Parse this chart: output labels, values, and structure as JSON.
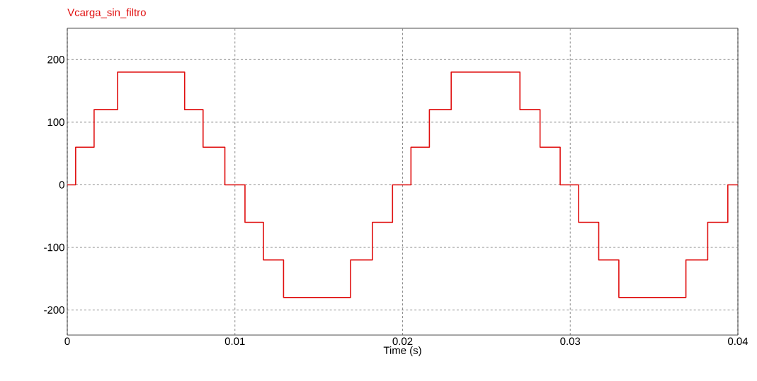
{
  "chart_data": {
    "type": "step",
    "xlabel": "Time (s)",
    "x": [
      0,
      0.0005,
      0.0016,
      0.003,
      0.007,
      0.0081,
      0.0094,
      0.0106,
      0.0117,
      0.0129,
      0.0169,
      0.0182,
      0.0194,
      0.0205,
      0.0216,
      0.0229,
      0.027,
      0.0282,
      0.0294,
      0.0305,
      0.0317,
      0.0329,
      0.0369,
      0.0382,
      0.0394,
      0.04
    ],
    "series": [
      {
        "name": "Vcarga_sin_filtro",
        "color": "#e01010",
        "values": [
          0,
          60,
          120,
          180,
          120,
          60,
          0,
          -60,
          -120,
          -180,
          -120,
          -60,
          0,
          60,
          120,
          180,
          120,
          60,
          0,
          -60,
          -120,
          -180,
          -120,
          -60,
          0,
          0
        ]
      }
    ],
    "xlim": [
      0,
      0.04
    ],
    "xticks": [
      0,
      0.01,
      0.02,
      0.03,
      0.04
    ],
    "ylim": [
      -240,
      250
    ],
    "yticks": [
      -200,
      -100,
      0,
      100,
      200
    ],
    "grid": true
  }
}
